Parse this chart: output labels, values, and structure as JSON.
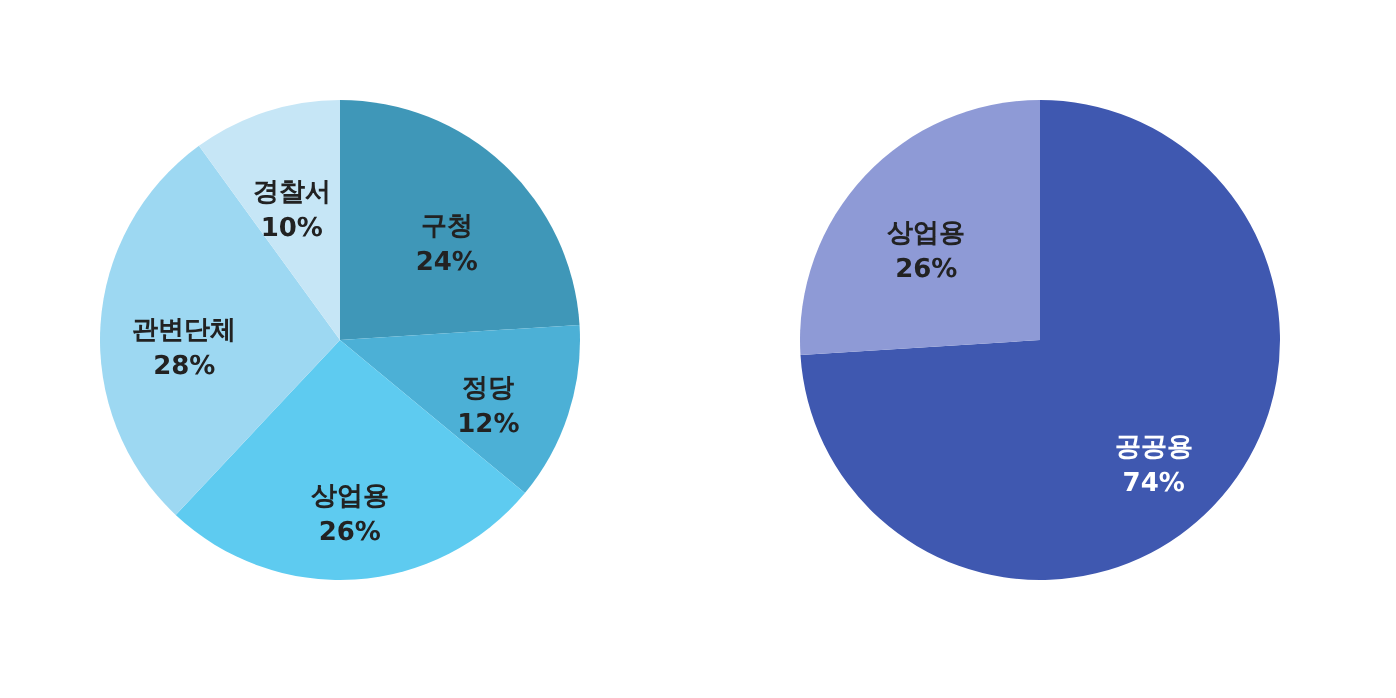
{
  "chart_data": [
    {
      "type": "pie",
      "categories": [
        "구청",
        "정당",
        "상업용",
        "관변단체",
        "경찰서"
      ],
      "values": [
        24,
        12,
        26,
        28,
        10
      ],
      "value_labels": [
        "24%",
        "12%",
        "26%",
        "28%",
        "10%"
      ],
      "colors": [
        "#3f97b8",
        "#4cb0d6",
        "#5ecbf0",
        "#9dd8f2",
        "#c6e6f6"
      ]
    },
    {
      "type": "pie",
      "categories": [
        "공공용",
        "상업용"
      ],
      "values": [
        74,
        26
      ],
      "value_labels": [
        "74%",
        "26%"
      ],
      "colors": [
        "#3f58b0",
        "#8e9ad6"
      ]
    }
  ]
}
